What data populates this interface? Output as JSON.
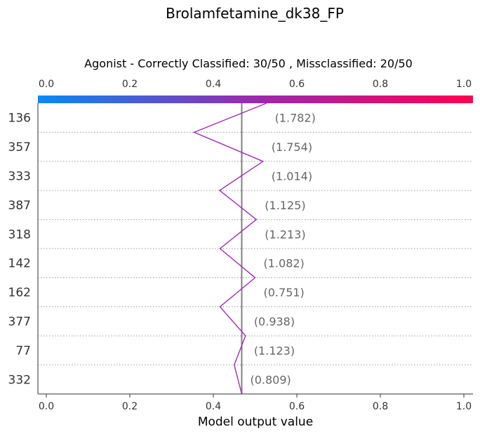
{
  "chart_data": {
    "type": "line",
    "title": "Brolamfetamine_dk38_FP",
    "subtitle": "Agonist - Correctly Classified: 30/50 , Missclassified: 20/50",
    "xlabel": "Model output value",
    "xlim": [
      0.0,
      1.0
    ],
    "ticks": [
      "0.0",
      "0.2",
      "0.4",
      "0.6",
      "0.8",
      "1.0"
    ],
    "tick_values": [
      0.0,
      0.2,
      0.4,
      0.6,
      0.8,
      1.0
    ],
    "base_value": 0.468,
    "colorbar": {
      "from": "#008bfb",
      "mid": "#9c27b0",
      "to": "#ff0051"
    },
    "line_color": "#a02cb4",
    "features": [
      "136",
      "357",
      "333",
      "387",
      "318",
      "142",
      "162",
      "377",
      "77",
      "332"
    ],
    "feature_values": [
      "(1.782)",
      "(1.754)",
      "(1.014)",
      "(1.125)",
      "(1.213)",
      "(1.082)",
      "(0.751)",
      "(0.938)",
      "(1.123)",
      "(0.809)"
    ],
    "path_x": [
      0.527,
      0.354,
      0.519,
      0.415,
      0.503,
      0.416,
      0.5,
      0.416,
      0.477,
      0.45,
      0.468
    ],
    "grid": "dotted"
  }
}
